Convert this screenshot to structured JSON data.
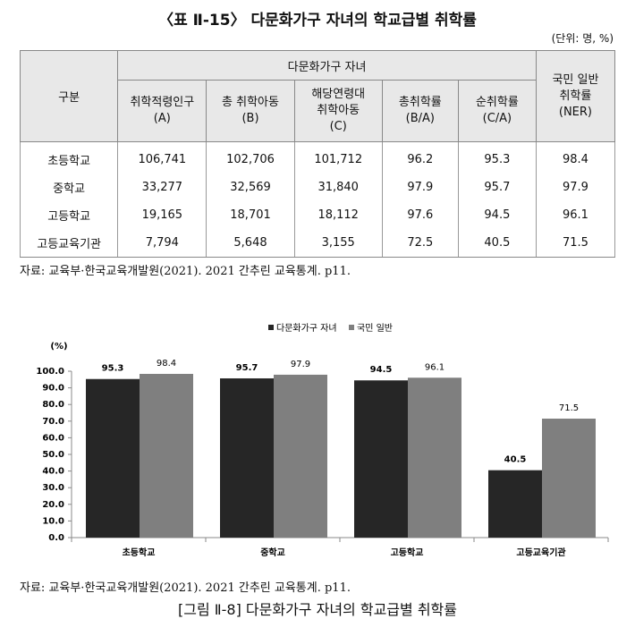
{
  "table_title": "〈표 Ⅱ-15〉 다문화가구 자녀의 학교급별 취학률",
  "unit": "(단위: 명, %)",
  "table": {
    "header_top": [
      "구분",
      "다문화가구 자녀",
      "국민 일반\n취학률\n(NER)"
    ],
    "header_sub": [
      "취학적령인구\n(A)",
      "총 취학아동\n(B)",
      "해당연령대\n취학아동\n(C)",
      "총취학률\n(B/A)",
      "순취학률\n(C/A)"
    ],
    "rows": [
      [
        "초등학교",
        "106,741",
        "102,706",
        "101,712",
        "96.2",
        "95.3",
        "98.4"
      ],
      [
        "중학교",
        "33,277",
        "32,569",
        "31,840",
        "97.9",
        "95.7",
        "97.9"
      ],
      [
        "고등학교",
        "19,165",
        "18,701",
        "18,112",
        "97.6",
        "94.5",
        "96.1"
      ],
      [
        "고등교육기관",
        "7,794",
        "5,648",
        "3,155",
        "72.5",
        "40.5",
        "71.5"
      ]
    ]
  },
  "table_source": "자료: 교육부·한국교육개발원(2021). 2021 간추린 교육통계. p11.",
  "chart_data": {
    "type": "bar",
    "y_label": "(%)",
    "categories": [
      "초등학교",
      "중학교",
      "고등학교",
      "고등교육기관"
    ],
    "series": [
      {
        "name": "다문화가구 자녀",
        "color": "#262626",
        "values": [
          95.3,
          95.7,
          94.5,
          40.5
        ]
      },
      {
        "name": "국민 일반",
        "color": "#7f7f7f",
        "values": [
          98.4,
          97.9,
          96.1,
          71.5
        ]
      }
    ],
    "ylim": [
      0,
      100
    ],
    "yticks": [
      {
        "value": 0,
        "label": "0.0"
      },
      {
        "value": 10,
        "label": "10.0"
      },
      {
        "value": 20,
        "label": "20.0"
      },
      {
        "value": 30,
        "label": "30.0"
      },
      {
        "value": 40,
        "label": "40.0"
      },
      {
        "value": 50,
        "label": "50.0"
      },
      {
        "value": 60,
        "label": "60.0"
      },
      {
        "value": 70,
        "label": "70.0"
      },
      {
        "value": 80,
        "label": "80.0"
      },
      {
        "value": 90,
        "label": "90.0"
      },
      {
        "value": 100,
        "label": "100.0"
      }
    ],
    "legend": "top"
  },
  "figure_source": "자료: 교육부·한국교육개발원(2021). 2021 간추린 교육통계. p11.",
  "figure_caption": "[그림 Ⅱ-8] 다문화가구 자녀의 학교급별 취학률"
}
